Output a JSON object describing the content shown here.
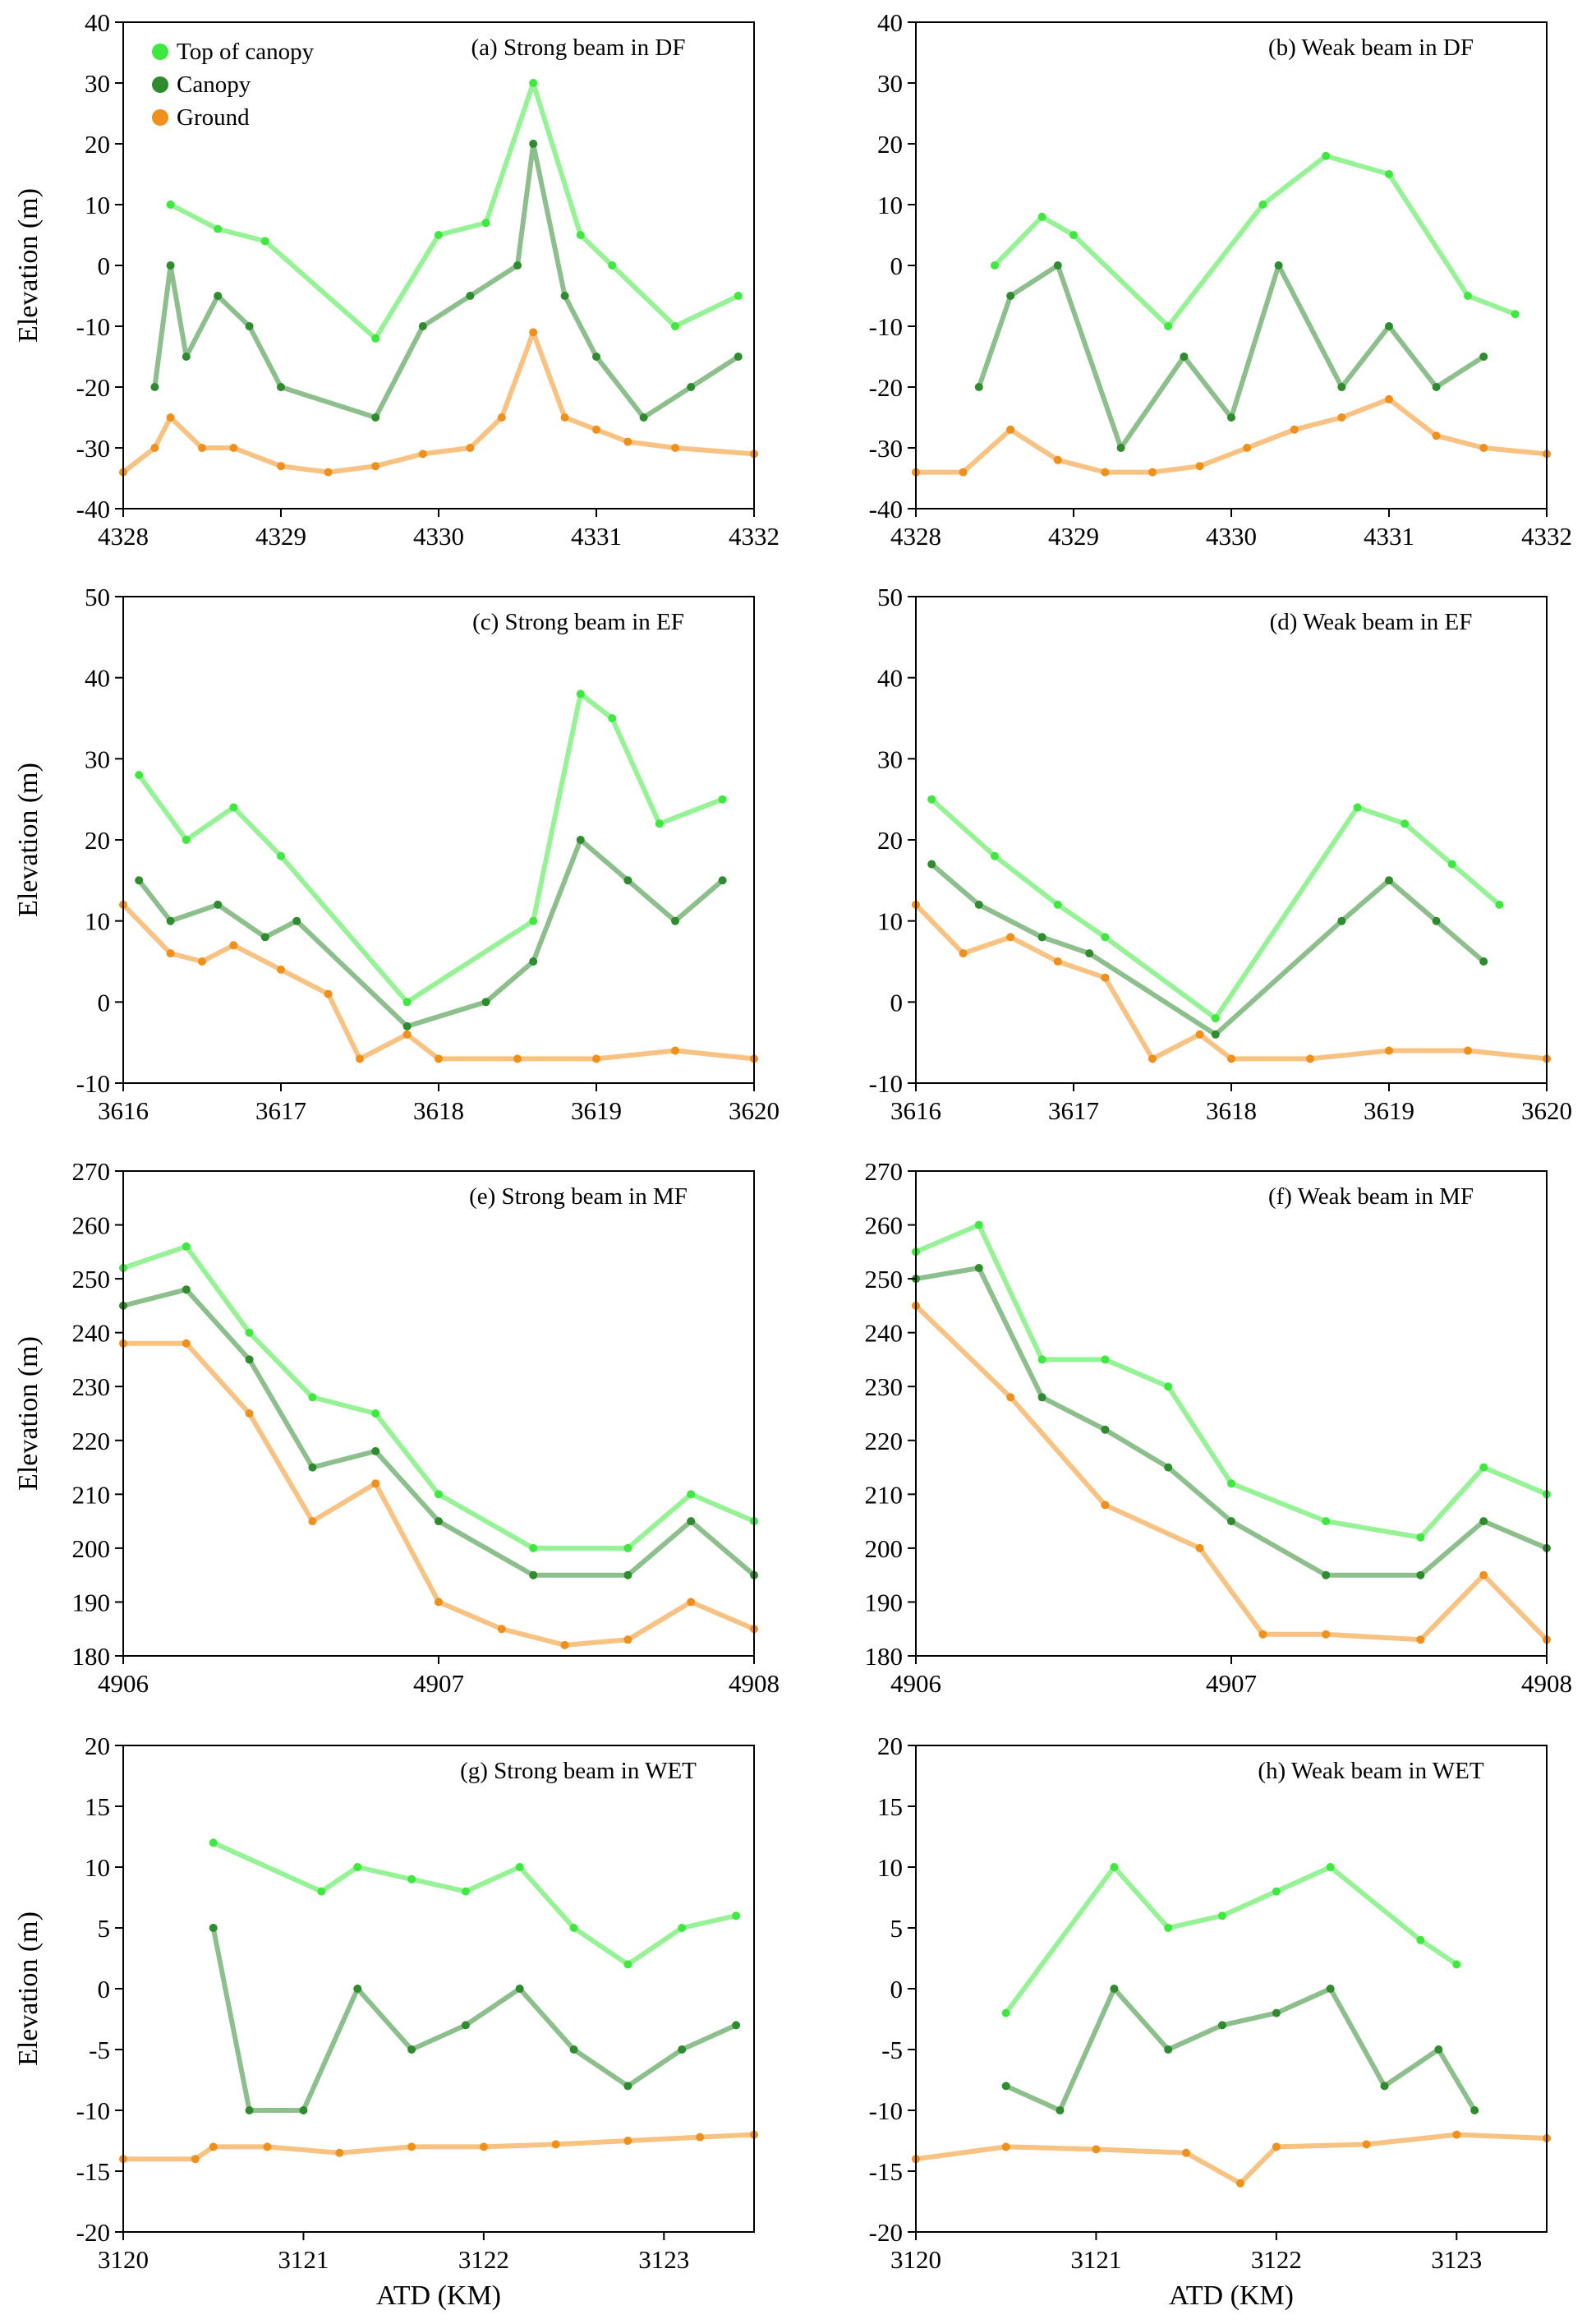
{
  "figure": {
    "ylabel": "Elevation (m)",
    "xlabel": "ATD (KM)",
    "legend": {
      "placement": "top-left",
      "entries": [
        {
          "label": "Top of canopy",
          "color": "#3ee83e"
        },
        {
          "label": "Canopy",
          "color": "#2e8b2e"
        },
        {
          "label": "Ground",
          "color": "#f0901c"
        }
      ]
    }
  },
  "chart_data": [
    {
      "type": "scatter",
      "title": "(a) Strong beam in DF",
      "xlim": [
        4328,
        4332
      ],
      "ylim": [
        -40,
        40
      ],
      "xticks": [
        4328,
        4329,
        4330,
        4331,
        4332
      ],
      "yticks": [
        -40,
        -30,
        -20,
        -10,
        0,
        10,
        20,
        30,
        40
      ],
      "show_ylabel": true,
      "show_xlabel": false,
      "legend": true,
      "series": [
        {
          "name": "Top of canopy",
          "color": "#3ee83e",
          "x": [
            4328.3,
            4328.6,
            4328.9,
            4329.6,
            4330.0,
            4330.3,
            4330.6,
            4330.9,
            4331.1,
            4331.5,
            4331.9
          ],
          "y": [
            10,
            6,
            4,
            -12,
            5,
            7,
            30,
            5,
            0,
            -10,
            -5
          ]
        },
        {
          "name": "Canopy",
          "color": "#2e8b2e",
          "x": [
            4328.2,
            4328.3,
            4328.4,
            4328.6,
            4328.8,
            4329.0,
            4329.6,
            4329.9,
            4330.2,
            4330.5,
            4330.6,
            4330.8,
            4331.0,
            4331.3,
            4331.6,
            4331.9
          ],
          "y": [
            -20,
            0,
            -15,
            -5,
            -10,
            -20,
            -25,
            -10,
            -5,
            0,
            20,
            -5,
            -15,
            -25,
            -20,
            -15
          ]
        },
        {
          "name": "Ground",
          "color": "#f0901c",
          "x": [
            4328.0,
            4328.2,
            4328.3,
            4328.5,
            4328.7,
            4329.0,
            4329.3,
            4329.6,
            4329.9,
            4330.2,
            4330.4,
            4330.6,
            4330.8,
            4331.0,
            4331.2,
            4331.5,
            4332.0
          ],
          "y": [
            -34,
            -30,
            -25,
            -30,
            -30,
            -33,
            -34,
            -33,
            -31,
            -30,
            -25,
            -11,
            -25,
            -27,
            -29,
            -30,
            -31
          ]
        }
      ]
    },
    {
      "type": "scatter",
      "title": "(b) Weak beam in DF",
      "xlim": [
        4328,
        4332
      ],
      "ylim": [
        -40,
        40
      ],
      "xticks": [
        4328,
        4329,
        4330,
        4331,
        4332
      ],
      "yticks": [
        -40,
        -30,
        -20,
        -10,
        0,
        10,
        20,
        30,
        40
      ],
      "show_ylabel": false,
      "show_xlabel": false,
      "legend": false,
      "series": [
        {
          "name": "Top of canopy",
          "color": "#3ee83e",
          "x": [
            4328.5,
            4328.8,
            4329.0,
            4329.6,
            4330.2,
            4330.6,
            4331.0,
            4331.5,
            4331.8
          ],
          "y": [
            0,
            8,
            5,
            -10,
            10,
            18,
            15,
            -5,
            -8
          ]
        },
        {
          "name": "Canopy",
          "color": "#2e8b2e",
          "x": [
            4328.4,
            4328.6,
            4328.9,
            4329.3,
            4329.7,
            4330.0,
            4330.3,
            4330.7,
            4331.0,
            4331.3,
            4331.6
          ],
          "y": [
            -20,
            -5,
            0,
            -30,
            -15,
            -25,
            0,
            -20,
            -10,
            -20,
            -15
          ]
        },
        {
          "name": "Ground",
          "color": "#f0901c",
          "x": [
            4328.0,
            4328.3,
            4328.6,
            4328.9,
            4329.2,
            4329.5,
            4329.8,
            4330.1,
            4330.4,
            4330.7,
            4331.0,
            4331.3,
            4331.6,
            4332.0
          ],
          "y": [
            -34,
            -34,
            -27,
            -32,
            -34,
            -34,
            -33,
            -30,
            -27,
            -25,
            -22,
            -28,
            -30,
            -31
          ]
        }
      ]
    },
    {
      "type": "scatter",
      "title": "(c) Strong beam in EF",
      "xlim": [
        3616,
        3620
      ],
      "ylim": [
        -10,
        50
      ],
      "xticks": [
        3616,
        3617,
        3618,
        3619,
        3620
      ],
      "yticks": [
        -10,
        0,
        10,
        20,
        30,
        40,
        50
      ],
      "show_ylabel": true,
      "show_xlabel": false,
      "legend": false,
      "series": [
        {
          "name": "Top of canopy",
          "color": "#3ee83e",
          "x": [
            3616.1,
            3616.4,
            3616.7,
            3617.0,
            3617.8,
            3618.6,
            3618.9,
            3619.1,
            3619.4,
            3619.8
          ],
          "y": [
            28,
            20,
            24,
            18,
            0,
            10,
            38,
            35,
            22,
            25
          ]
        },
        {
          "name": "Canopy",
          "color": "#2e8b2e",
          "x": [
            3616.1,
            3616.3,
            3616.6,
            3616.9,
            3617.1,
            3617.8,
            3618.3,
            3618.6,
            3618.9,
            3619.2,
            3619.5,
            3619.8
          ],
          "y": [
            15,
            10,
            12,
            8,
            10,
            -3,
            0,
            5,
            20,
            15,
            10,
            15
          ]
        },
        {
          "name": "Ground",
          "color": "#f0901c",
          "x": [
            3616.0,
            3616.3,
            3616.5,
            3616.7,
            3617.0,
            3617.3,
            3617.5,
            3617.8,
            3618.0,
            3618.5,
            3619.0,
            3619.5,
            3620.0
          ],
          "y": [
            12,
            6,
            5,
            7,
            4,
            1,
            -7,
            -4,
            -7,
            -7,
            -7,
            -6,
            -7
          ]
        }
      ]
    },
    {
      "type": "scatter",
      "title": "(d) Weak beam in EF",
      "xlim": [
        3616,
        3620
      ],
      "ylim": [
        -10,
        50
      ],
      "xticks": [
        3616,
        3617,
        3618,
        3619,
        3620
      ],
      "yticks": [
        -10,
        0,
        10,
        20,
        30,
        40,
        50
      ],
      "show_ylabel": false,
      "show_xlabel": false,
      "legend": false,
      "series": [
        {
          "name": "Top of canopy",
          "color": "#3ee83e",
          "x": [
            3616.1,
            3616.5,
            3616.9,
            3617.2,
            3617.9,
            3618.8,
            3619.1,
            3619.4,
            3619.7
          ],
          "y": [
            25,
            18,
            12,
            8,
            -2,
            24,
            22,
            17,
            12
          ]
        },
        {
          "name": "Canopy",
          "color": "#2e8b2e",
          "x": [
            3616.1,
            3616.4,
            3616.8,
            3617.1,
            3617.9,
            3618.7,
            3619.0,
            3619.3,
            3619.6
          ],
          "y": [
            17,
            12,
            8,
            6,
            -4,
            10,
            15,
            10,
            5
          ]
        },
        {
          "name": "Ground",
          "color": "#f0901c",
          "x": [
            3616.0,
            3616.3,
            3616.6,
            3616.9,
            3617.2,
            3617.5,
            3617.8,
            3618.0,
            3618.5,
            3619.0,
            3619.5,
            3620.0
          ],
          "y": [
            12,
            6,
            8,
            5,
            3,
            -7,
            -4,
            -7,
            -7,
            -6,
            -6,
            -7
          ]
        }
      ]
    },
    {
      "type": "scatter",
      "title": "(e) Strong beam in MF",
      "xlim": [
        4906,
        4908
      ],
      "ylim": [
        180,
        270
      ],
      "xticks": [
        4906,
        4907,
        4908
      ],
      "yticks": [
        180,
        190,
        200,
        210,
        220,
        230,
        240,
        250,
        260,
        270
      ],
      "show_ylabel": true,
      "show_xlabel": false,
      "legend": false,
      "series": [
        {
          "name": "Top of canopy",
          "color": "#3ee83e",
          "x": [
            4906.0,
            4906.2,
            4906.4,
            4906.6,
            4906.8,
            4907.0,
            4907.3,
            4907.6,
            4907.8,
            4908.0
          ],
          "y": [
            252,
            256,
            240,
            228,
            225,
            210,
            200,
            200,
            210,
            205
          ]
        },
        {
          "name": "Canopy",
          "color": "#2e8b2e",
          "x": [
            4906.0,
            4906.2,
            4906.4,
            4906.6,
            4906.8,
            4907.0,
            4907.3,
            4907.6,
            4907.8,
            4908.0
          ],
          "y": [
            245,
            248,
            235,
            215,
            218,
            205,
            195,
            195,
            205,
            195
          ]
        },
        {
          "name": "Ground",
          "color": "#f0901c",
          "x": [
            4906.0,
            4906.2,
            4906.4,
            4906.6,
            4906.8,
            4907.0,
            4907.2,
            4907.4,
            4907.6,
            4907.8,
            4908.0
          ],
          "y": [
            238,
            238,
            225,
            205,
            212,
            190,
            185,
            182,
            183,
            190,
            185
          ]
        }
      ]
    },
    {
      "type": "scatter",
      "title": "(f) Weak beam in MF",
      "xlim": [
        4906,
        4908
      ],
      "ylim": [
        180,
        270
      ],
      "xticks": [
        4906,
        4907,
        4908
      ],
      "yticks": [
        180,
        190,
        200,
        210,
        220,
        230,
        240,
        250,
        260,
        270
      ],
      "show_ylabel": false,
      "show_xlabel": false,
      "legend": false,
      "series": [
        {
          "name": "Top of canopy",
          "color": "#3ee83e",
          "x": [
            4906.0,
            4906.2,
            4906.4,
            4906.6,
            4906.8,
            4907.0,
            4907.3,
            4907.6,
            4907.8,
            4908.0
          ],
          "y": [
            255,
            260,
            235,
            235,
            230,
            212,
            205,
            202,
            215,
            210
          ]
        },
        {
          "name": "Canopy",
          "color": "#2e8b2e",
          "x": [
            4906.0,
            4906.2,
            4906.4,
            4906.6,
            4906.8,
            4907.0,
            4907.3,
            4907.6,
            4907.8,
            4908.0
          ],
          "y": [
            250,
            252,
            228,
            222,
            215,
            205,
            195,
            195,
            205,
            200
          ]
        },
        {
          "name": "Ground",
          "color": "#f0901c",
          "x": [
            4906.0,
            4906.3,
            4906.6,
            4906.9,
            4907.1,
            4907.3,
            4907.6,
            4907.8,
            4908.0
          ],
          "y": [
            245,
            228,
            208,
            200,
            184,
            184,
            183,
            195,
            183
          ]
        }
      ]
    },
    {
      "type": "scatter",
      "title": "(g) Strong beam in WET",
      "xlim": [
        3120,
        3123.5
      ],
      "ylim": [
        -20,
        20
      ],
      "xticks": [
        3120,
        3121,
        3122,
        3123
      ],
      "yticks": [
        -20,
        -15,
        -10,
        -5,
        0,
        5,
        10,
        15,
        20
      ],
      "show_ylabel": true,
      "show_xlabel": true,
      "legend": false,
      "series": [
        {
          "name": "Top of canopy",
          "color": "#3ee83e",
          "x": [
            3120.5,
            3121.1,
            3121.3,
            3121.6,
            3121.9,
            3122.2,
            3122.5,
            3122.8,
            3123.1,
            3123.4
          ],
          "y": [
            12,
            8,
            10,
            9,
            8,
            10,
            5,
            2,
            5,
            6
          ]
        },
        {
          "name": "Canopy",
          "color": "#2e8b2e",
          "x": [
            3120.5,
            3120.7,
            3121.0,
            3121.3,
            3121.6,
            3121.9,
            3122.2,
            3122.5,
            3122.8,
            3123.1,
            3123.4
          ],
          "y": [
            5,
            -10,
            -10,
            0,
            -5,
            -3,
            0,
            -5,
            -8,
            -5,
            -3
          ]
        },
        {
          "name": "Ground",
          "color": "#f0901c",
          "x": [
            3120.0,
            3120.4,
            3120.5,
            3120.8,
            3121.2,
            3121.6,
            3122.0,
            3122.4,
            3122.8,
            3123.2,
            3123.5
          ],
          "y": [
            -14,
            -14,
            -13,
            -13,
            -13.5,
            -13,
            -13,
            -12.8,
            -12.5,
            -12.2,
            -12
          ]
        }
      ]
    },
    {
      "type": "scatter",
      "title": "(h) Weak beam in WET",
      "xlim": [
        3120,
        3123.5
      ],
      "ylim": [
        -20,
        20
      ],
      "xticks": [
        3120,
        3121,
        3122,
        3123
      ],
      "yticks": [
        -20,
        -15,
        -10,
        -5,
        0,
        5,
        10,
        15,
        20
      ],
      "show_ylabel": false,
      "show_xlabel": true,
      "legend": false,
      "series": [
        {
          "name": "Top of canopy",
          "color": "#3ee83e",
          "x": [
            3120.5,
            3121.1,
            3121.4,
            3121.7,
            3122.0,
            3122.3,
            3122.8,
            3123.0
          ],
          "y": [
            -2,
            10,
            5,
            6,
            8,
            10,
            4,
            2
          ]
        },
        {
          "name": "Canopy",
          "color": "#2e8b2e",
          "x": [
            3120.5,
            3120.8,
            3121.1,
            3121.4,
            3121.7,
            3122.0,
            3122.3,
            3122.6,
            3122.9,
            3123.1
          ],
          "y": [
            -8,
            -10,
            0,
            -5,
            -3,
            -2,
            0,
            -8,
            -5,
            -10
          ]
        },
        {
          "name": "Ground",
          "color": "#f0901c",
          "x": [
            3120.0,
            3120.5,
            3121.0,
            3121.5,
            3121.8,
            3122.0,
            3122.5,
            3123.0,
            3123.5
          ],
          "y": [
            -14,
            -13,
            -13.2,
            -13.5,
            -16,
            -13,
            -12.8,
            -12,
            -12.3
          ]
        }
      ]
    }
  ]
}
